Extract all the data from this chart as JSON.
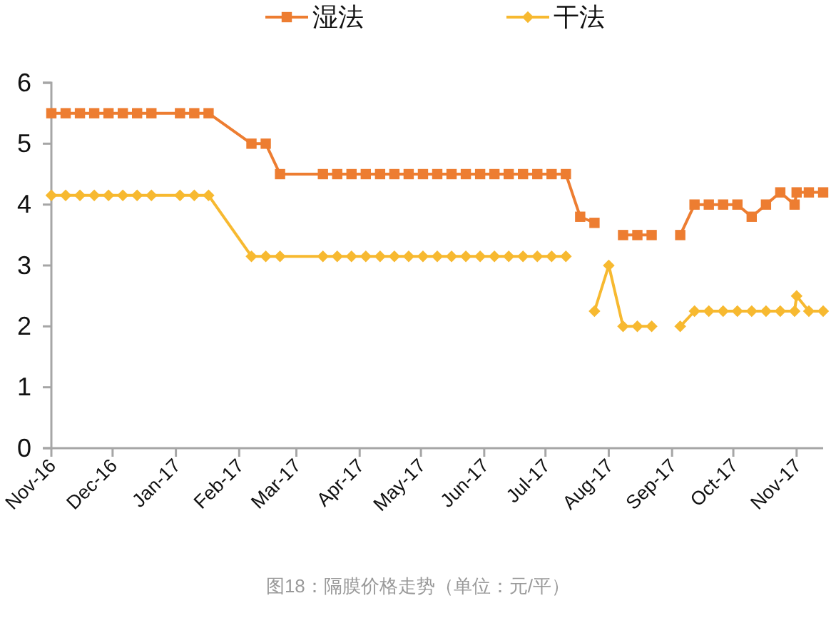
{
  "chart_data": {
    "type": "line",
    "x": [
      "2016-11-01",
      "2016-11-08",
      "2016-11-15",
      "2016-11-22",
      "2016-11-29",
      "2016-12-06",
      "2016-12-13",
      "2016-12-20",
      "2017-01-03",
      "2017-01-10",
      "2017-01-17",
      "2017-02-07",
      "2017-02-14",
      "2017-02-21",
      "2017-03-14",
      "2017-03-21",
      "2017-03-28",
      "2017-04-04",
      "2017-04-11",
      "2017-04-18",
      "2017-04-25",
      "2017-05-02",
      "2017-05-09",
      "2017-05-16",
      "2017-05-23",
      "2017-05-30",
      "2017-06-06",
      "2017-06-13",
      "2017-06-20",
      "2017-06-27",
      "2017-07-04",
      "2017-07-11",
      "2017-07-18",
      "2017-07-25",
      "2017-08-01",
      "2017-08-08",
      "2017-08-15",
      "2017-08-22",
      "2017-08-29",
      "2017-09-05",
      "2017-09-12",
      "2017-09-19",
      "2017-09-26",
      "2017-10-03",
      "2017-10-10",
      "2017-10-17",
      "2017-10-24",
      "2017-10-31",
      "2017-11-01",
      "2017-11-07",
      "2017-11-14"
    ],
    "series": [
      {
        "name": "湿法",
        "color": "#ed7d31",
        "marker": "square",
        "values": [
          5.5,
          5.5,
          5.5,
          5.5,
          5.5,
          5.5,
          5.5,
          5.5,
          5.5,
          5.5,
          5.5,
          5.0,
          5.0,
          4.5,
          4.5,
          4.5,
          4.5,
          4.5,
          4.5,
          4.5,
          4.5,
          4.5,
          4.5,
          4.5,
          4.5,
          4.5,
          4.5,
          4.5,
          4.5,
          4.5,
          4.5,
          4.5,
          3.8,
          3.7,
          null,
          3.5,
          3.5,
          3.5,
          null,
          3.5,
          4.0,
          4.0,
          4.0,
          4.0,
          3.8,
          4.0,
          4.2,
          4.0,
          4.2,
          4.2,
          4.2
        ]
      },
      {
        "name": "干法",
        "color": "#f7b930",
        "marker": "diamond",
        "values": [
          4.15,
          4.15,
          4.15,
          4.15,
          4.15,
          4.15,
          4.15,
          4.15,
          4.15,
          4.15,
          4.15,
          3.15,
          3.15,
          3.15,
          3.15,
          3.15,
          3.15,
          3.15,
          3.15,
          3.15,
          3.15,
          3.15,
          3.15,
          3.15,
          3.15,
          3.15,
          3.15,
          3.15,
          3.15,
          3.15,
          3.15,
          3.15,
          null,
          2.25,
          3.0,
          2.0,
          2.0,
          2.0,
          null,
          2.0,
          2.25,
          2.25,
          2.25,
          2.25,
          2.25,
          2.25,
          2.25,
          2.25,
          2.5,
          2.25,
          2.25
        ]
      }
    ],
    "xlim": [
      "2016-11-01",
      "2017-11-14"
    ],
    "xticks": [
      {
        "value": "2016-11-01",
        "label": "Nov-16"
      },
      {
        "value": "2016-12-01",
        "label": "Dec-16"
      },
      {
        "value": "2017-01-01",
        "label": "Jan-17"
      },
      {
        "value": "2017-02-01",
        "label": "Feb-17"
      },
      {
        "value": "2017-03-01",
        "label": "Mar-17"
      },
      {
        "value": "2017-04-01",
        "label": "Apr-17"
      },
      {
        "value": "2017-05-01",
        "label": "May-17"
      },
      {
        "value": "2017-06-01",
        "label": "Jun-17"
      },
      {
        "value": "2017-07-01",
        "label": "Jul-17"
      },
      {
        "value": "2017-08-01",
        "label": "Aug-17"
      },
      {
        "value": "2017-09-01",
        "label": "Sep-17"
      },
      {
        "value": "2017-10-01",
        "label": "Oct-17"
      },
      {
        "value": "2017-11-01",
        "label": "Nov-17"
      }
    ],
    "ylim": [
      0,
      6
    ],
    "yticks": [
      0,
      1,
      2,
      3,
      4,
      5,
      6
    ],
    "legend": "top",
    "annotations": [
      "图18：隔膜价格走势（单位：元/平）"
    ]
  }
}
